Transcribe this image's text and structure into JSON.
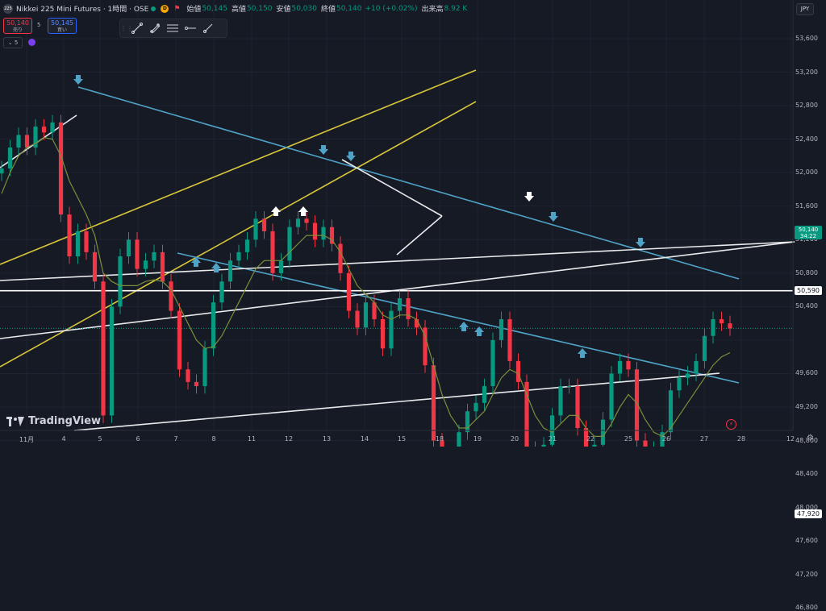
{
  "header": {
    "logo_text": "225",
    "title": "Nikkei 225 Mini Futures · 1時間 · OSE",
    "d_badge": "D",
    "open_label": "始値",
    "open": "50,145",
    "high_label": "高値",
    "high": "50,150",
    "low_label": "安値",
    "low": "50,030",
    "close_label": "終値",
    "close": "50,140",
    "change": "+10 (+0.02%)",
    "volume_label": "出来高",
    "volume": "8.92 K"
  },
  "trade": {
    "sell_price": "50,140",
    "sell_label": "売り",
    "spread": "5",
    "buy_price": "50,145",
    "buy_label": "買い",
    "lots": "5"
  },
  "toolbar": {
    "tools": [
      "trend-line-tool",
      "fib-tool",
      "parallel-channel-tool",
      "horizontal-ray-tool",
      "ray-tool"
    ]
  },
  "currency": "JPY",
  "branding": "TradingView",
  "chart_data": {
    "type": "line",
    "ylim": [
      46500,
      54000
    ],
    "ticks_y": [
      "53,600",
      "53,200",
      "52,800",
      "52,400",
      "52,000",
      "51,600",
      "51,200",
      "50,800",
      "50,400",
      "49,600",
      "49,200",
      "48,800",
      "48,400",
      "48,000",
      "47,600",
      "47,200",
      "46,800"
    ],
    "ticks_x": [
      "11月",
      "4",
      "5",
      "6",
      "7",
      "8",
      "11",
      "12",
      "13",
      "14",
      "15",
      "18",
      "19",
      "20",
      "21",
      "22",
      "25",
      "26",
      "27",
      "28",
      "12"
    ],
    "price_lines": [
      {
        "label": "50,590",
        "value": 50590
      },
      {
        "label": "47,920",
        "value": 47920
      }
    ],
    "last_price": {
      "label": "50,140",
      "countdown": "34:22",
      "value": 50140
    },
    "close_series": [
      52050,
      52300,
      52450,
      52300,
      52550,
      52480,
      52600,
      51500,
      51000,
      51300,
      51050,
      50700,
      49100,
      50400,
      51000,
      51200,
      50850,
      50950,
      51050,
      50700,
      50350,
      49650,
      49500,
      49450,
      49900,
      50450,
      50700,
      50950,
      51050,
      51200,
      51450,
      51300,
      50800,
      50950,
      51350,
      51450,
      51400,
      51200,
      51350,
      51150,
      50800,
      50350,
      50150,
      50450,
      50250,
      49900,
      50350,
      50500,
      50250,
      50150,
      49700,
      48800,
      48550,
      48600,
      48900,
      49150,
      49250,
      49450,
      50000,
      50250,
      49750,
      49500,
      48700,
      48650,
      48750,
      49100,
      49450,
      49450,
      48950,
      48700,
      48750,
      49050,
      49600,
      49750,
      49650,
      48800,
      48600,
      48700,
      48900,
      49400,
      49550,
      49600,
      49750,
      50050,
      50250,
      50200,
      50140
    ],
    "ma_series": [
      51750,
      52000,
      52200,
      52300,
      52350,
      52420,
      52400,
      52200,
      51900,
      51700,
      51500,
      51250,
      50800,
      50700,
      50650,
      50650,
      50650,
      50700,
      50720,
      50700,
      50600,
      50400,
      50200,
      50000,
      49900,
      49920,
      50050,
      50250,
      50450,
      50650,
      50850,
      50950,
      50950,
      50950,
      51050,
      51150,
      51250,
      51250,
      51250,
      51200,
      51050,
      50850,
      50650,
      50550,
      50450,
      50300,
      50250,
      50300,
      50300,
      50250,
      50050,
      49700,
      49350,
      49100,
      48950,
      48950,
      49050,
      49150,
      49350,
      49550,
      49650,
      49600,
      49350,
      49100,
      48950,
      48900,
      49000,
      49100,
      49100,
      48950,
      48850,
      48850,
      49000,
      49200,
      49350,
      49250,
      49050,
      48900,
      48850,
      48950,
      49100,
      49250,
      49400,
      49550,
      49700,
      49800,
      49850
    ]
  }
}
